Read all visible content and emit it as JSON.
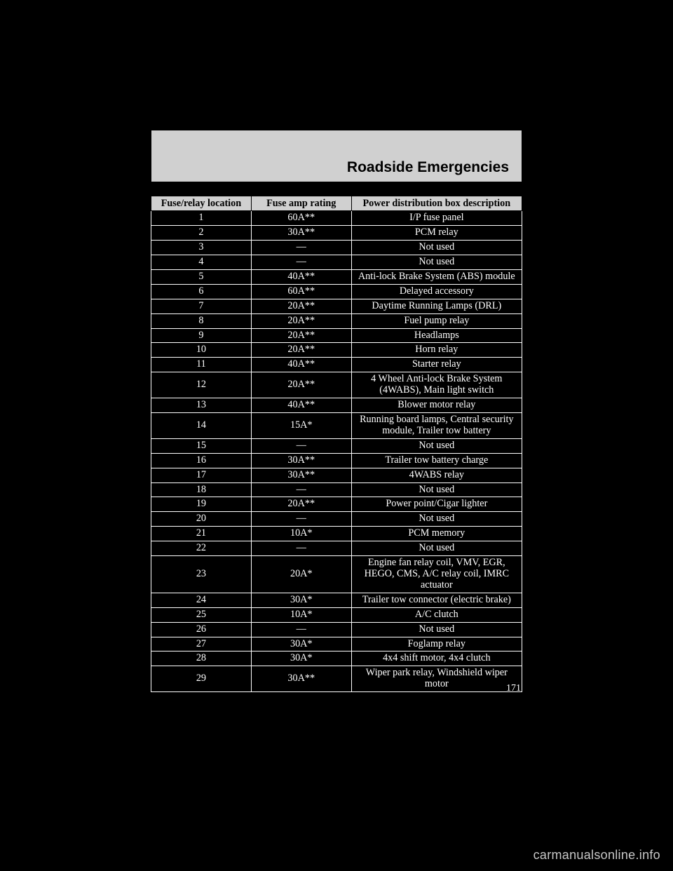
{
  "section_title": "Roadside Emergencies",
  "watermark": "carmanualsonline.info",
  "page_number": "171",
  "table": {
    "headers": {
      "col1": "Fuse/relay location",
      "col2": "Fuse amp rating",
      "col3": "Power distribution box description"
    },
    "rows": [
      {
        "loc": "1",
        "amp": "60A**",
        "desc": "I/P fuse panel"
      },
      {
        "loc": "2",
        "amp": "30A**",
        "desc": "PCM relay"
      },
      {
        "loc": "3",
        "amp": "—",
        "desc": "Not used"
      },
      {
        "loc": "4",
        "amp": "—",
        "desc": "Not used"
      },
      {
        "loc": "5",
        "amp": "40A**",
        "desc": "Anti-lock Brake System (ABS) module"
      },
      {
        "loc": "6",
        "amp": "60A**",
        "desc": "Delayed accessory"
      },
      {
        "loc": "7",
        "amp": "20A**",
        "desc": "Daytime Running Lamps (DRL)"
      },
      {
        "loc": "8",
        "amp": "20A**",
        "desc": "Fuel pump relay"
      },
      {
        "loc": "9",
        "amp": "20A**",
        "desc": "Headlamps"
      },
      {
        "loc": "10",
        "amp": "20A**",
        "desc": "Horn relay"
      },
      {
        "loc": "11",
        "amp": "40A**",
        "desc": "Starter relay"
      },
      {
        "loc": "12",
        "amp": "20A**",
        "desc": "4 Wheel Anti-lock Brake System (4WABS), Main light switch"
      },
      {
        "loc": "13",
        "amp": "40A**",
        "desc": "Blower motor relay"
      },
      {
        "loc": "14",
        "amp": "15A*",
        "desc": "Running board lamps, Central security module, Trailer tow battery"
      },
      {
        "loc": "15",
        "amp": "—",
        "desc": "Not used"
      },
      {
        "loc": "16",
        "amp": "30A**",
        "desc": "Trailer tow battery charge"
      },
      {
        "loc": "17",
        "amp": "30A**",
        "desc": "4WABS relay"
      },
      {
        "loc": "18",
        "amp": "—",
        "desc": "Not used"
      },
      {
        "loc": "19",
        "amp": "20A**",
        "desc": "Power point/Cigar lighter"
      },
      {
        "loc": "20",
        "amp": "—",
        "desc": "Not used"
      },
      {
        "loc": "21",
        "amp": "10A*",
        "desc": "PCM memory"
      },
      {
        "loc": "22",
        "amp": "—",
        "desc": "Not used"
      },
      {
        "loc": "23",
        "amp": "20A*",
        "desc": "Engine fan relay coil, VMV, EGR, HEGO, CMS, A/C relay coil, IMRC actuator"
      },
      {
        "loc": "24",
        "amp": "30A*",
        "desc": "Trailer tow connector (electric brake)"
      },
      {
        "loc": "25",
        "amp": "10A*",
        "desc": "A/C clutch"
      },
      {
        "loc": "26",
        "amp": "—",
        "desc": "Not used"
      },
      {
        "loc": "27",
        "amp": "30A*",
        "desc": "Foglamp relay"
      },
      {
        "loc": "28",
        "amp": "30A*",
        "desc": "4x4 shift motor, 4x4 clutch"
      },
      {
        "loc": "29",
        "amp": "30A**",
        "desc": "Wiper park relay, Windshield wiper motor"
      }
    ]
  }
}
